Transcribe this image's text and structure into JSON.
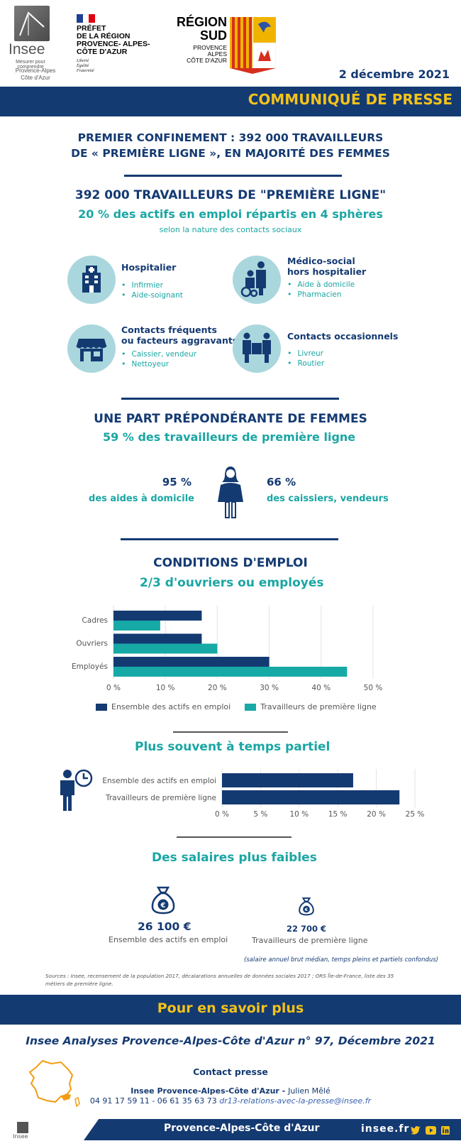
{
  "header": {
    "insee": {
      "word": "Insee",
      "tagline": "Mesurer pour comprendre",
      "region_line1": "Provence-Alpes",
      "region_line2": "Côte d'Azur"
    },
    "prefet": {
      "lines": [
        "PRÉFET",
        "DE LA RÉGION",
        "PROVENCE- ALPES-",
        "CÔTE D'AZUR"
      ],
      "motto": [
        "Liberté",
        "Égalité",
        "Fraternité"
      ]
    },
    "region_sud": {
      "line1": "RÉGION",
      "line2": "SUD",
      "sub": [
        "PROVENCE",
        "ALPES",
        "CÔTE D'AZUR"
      ]
    },
    "date": "2 décembre 2021"
  },
  "banner": {
    "title": "COMMUNIQUÉ DE PRESSE"
  },
  "headline": {
    "line1": "PREMIER CONFINEMENT : 392 000 TRAVAILLEURS",
    "line2": "DE « PREMIÈRE LIGNE », EN MAJORITÉ DES FEMMES"
  },
  "section1": {
    "title": "392 000 TRAVAILLEURS DE \"PREMIÈRE LIGNE\"",
    "subtitle": "20 % des actifs en emploi répartis en 4 sphères",
    "note": "selon la nature des contacts sociaux",
    "spheres": [
      {
        "icon": "hospital-icon",
        "title": "Hospitalier",
        "title2": "",
        "items": [
          "Infirmier",
          "Aide-soignant"
        ]
      },
      {
        "icon": "caregiver-icon",
        "title": "Médico-social",
        "title2": "hors hospitalier",
        "items": [
          "Aide à domicile",
          "Pharmacien"
        ]
      },
      {
        "icon": "shop-icon",
        "title": "Contacts fréquents",
        "title2": "ou facteurs aggravants",
        "items": [
          "Caissier, vendeur",
          "Nettoyeur"
        ]
      },
      {
        "icon": "delivery-icon",
        "title": "Contacts occasionnels",
        "title2": "",
        "items": [
          "Livreur",
          "Routier"
        ]
      }
    ]
  },
  "section2": {
    "title": "UNE PART PRÉPONDÉRANTE DE FEMMES",
    "subtitle": "59 % des travailleurs de première ligne",
    "left_value": "95 %",
    "left_label": "des aides à domicile",
    "right_value": "66 %",
    "right_label": "des caissiers, vendeurs"
  },
  "section3": {
    "title": "CONDITIONS D'EMPLOI",
    "subtitle": "2/3 d'ouvriers ou employés"
  },
  "colors": {
    "navy": "#143a72",
    "teal": "#17a9a6",
    "yellow": "#f4c21a"
  },
  "chart_data": [
    {
      "type": "bar",
      "orientation": "horizontal",
      "categories": [
        "Cadres",
        "Ouvriers",
        "Employés"
      ],
      "series": [
        {
          "name": "Ensemble des actifs en emploi",
          "values": [
            17,
            17,
            30
          ]
        },
        {
          "name": "Travailleurs de première ligne",
          "values": [
            9,
            20,
            45
          ]
        }
      ],
      "xlim": [
        0,
        50
      ],
      "ticks": [
        "0 %",
        "10 %",
        "20 %",
        "30 %",
        "40 %",
        "50 %"
      ],
      "tick_values": [
        0,
        10,
        20,
        30,
        40,
        50
      ],
      "grid": true,
      "legend": "bottom"
    },
    {
      "type": "bar",
      "orientation": "horizontal",
      "title": "Plus souvent à temps partiel",
      "categories": [
        "Ensemble des actifs en emploi",
        "Travailleurs de première ligne"
      ],
      "values": [
        17,
        23
      ],
      "xlim": [
        0,
        25
      ],
      "ticks": [
        "0 %",
        "5 %",
        "10 %",
        "15 %",
        "20 %",
        "25 %"
      ],
      "tick_values": [
        0,
        5,
        10,
        15,
        20,
        25
      ],
      "grid": true
    }
  ],
  "salaries": {
    "title": "Des salaires plus faibles",
    "left_value": "26 100 €",
    "left_label": "Ensemble des actifs en emploi",
    "right_value": "22 700 €",
    "right_label": "Travailleurs de première ligne",
    "note": "(salaire annuel brut médian, temps pleins et partiels confondus)"
  },
  "sources": "Sources : Insee, recensement de la population 2017, décalarations annuelles de données sociales 2017 ; ORS Île-de-France, liste des 35 métiers de première ligne.",
  "more": {
    "band_title": "Pour en savoir plus",
    "publication": "Insee Analyses Provence-Alpes-Côte d'Azur n° 97, Décembre 2021",
    "contact_title": "Contact presse",
    "contact_org": "Insee  Provence-Alpes-Côte d'Azur - ",
    "contact_name": "Julien Mêlé",
    "contact_phones": "04 91 17 59 11 - 06 61 35 63 73 ",
    "contact_email": "dr13-relations-avec-la-presse@insee.fr"
  },
  "footer": {
    "region": "Provence-Alpes-Côte d'Azur",
    "site": "insee.fr",
    "mini_logo": "Insee"
  }
}
